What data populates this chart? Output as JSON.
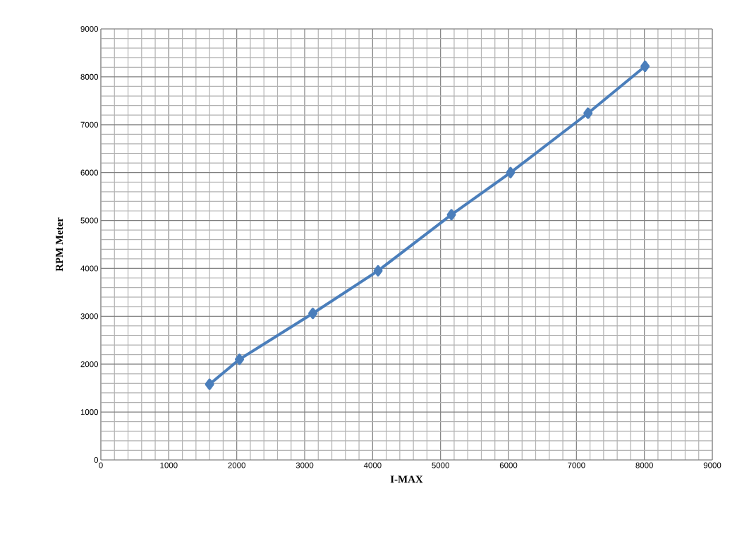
{
  "chart_data": {
    "type": "line",
    "xlabel": "I-MAX",
    "ylabel": "RPM Meter",
    "x": [
      1600,
      2040,
      3120,
      4080,
      5160,
      6030,
      7170,
      8010
    ],
    "series": [
      {
        "color": "#4a7ebb",
        "values": [
          1580,
          2100,
          3060,
          3950,
          5120,
          6000,
          7240,
          8220
        ]
      }
    ],
    "xlim": [
      0,
      9000
    ],
    "ylim": [
      0,
      9000
    ],
    "xticks": [
      0,
      1000,
      2000,
      3000,
      4000,
      5000,
      6000,
      7000,
      8000,
      9000
    ],
    "yticks": [
      0,
      1000,
      2000,
      3000,
      4000,
      5000,
      6000,
      7000,
      8000,
      9000
    ],
    "grid": true,
    "marker": "diamond",
    "line_style": "solid"
  }
}
